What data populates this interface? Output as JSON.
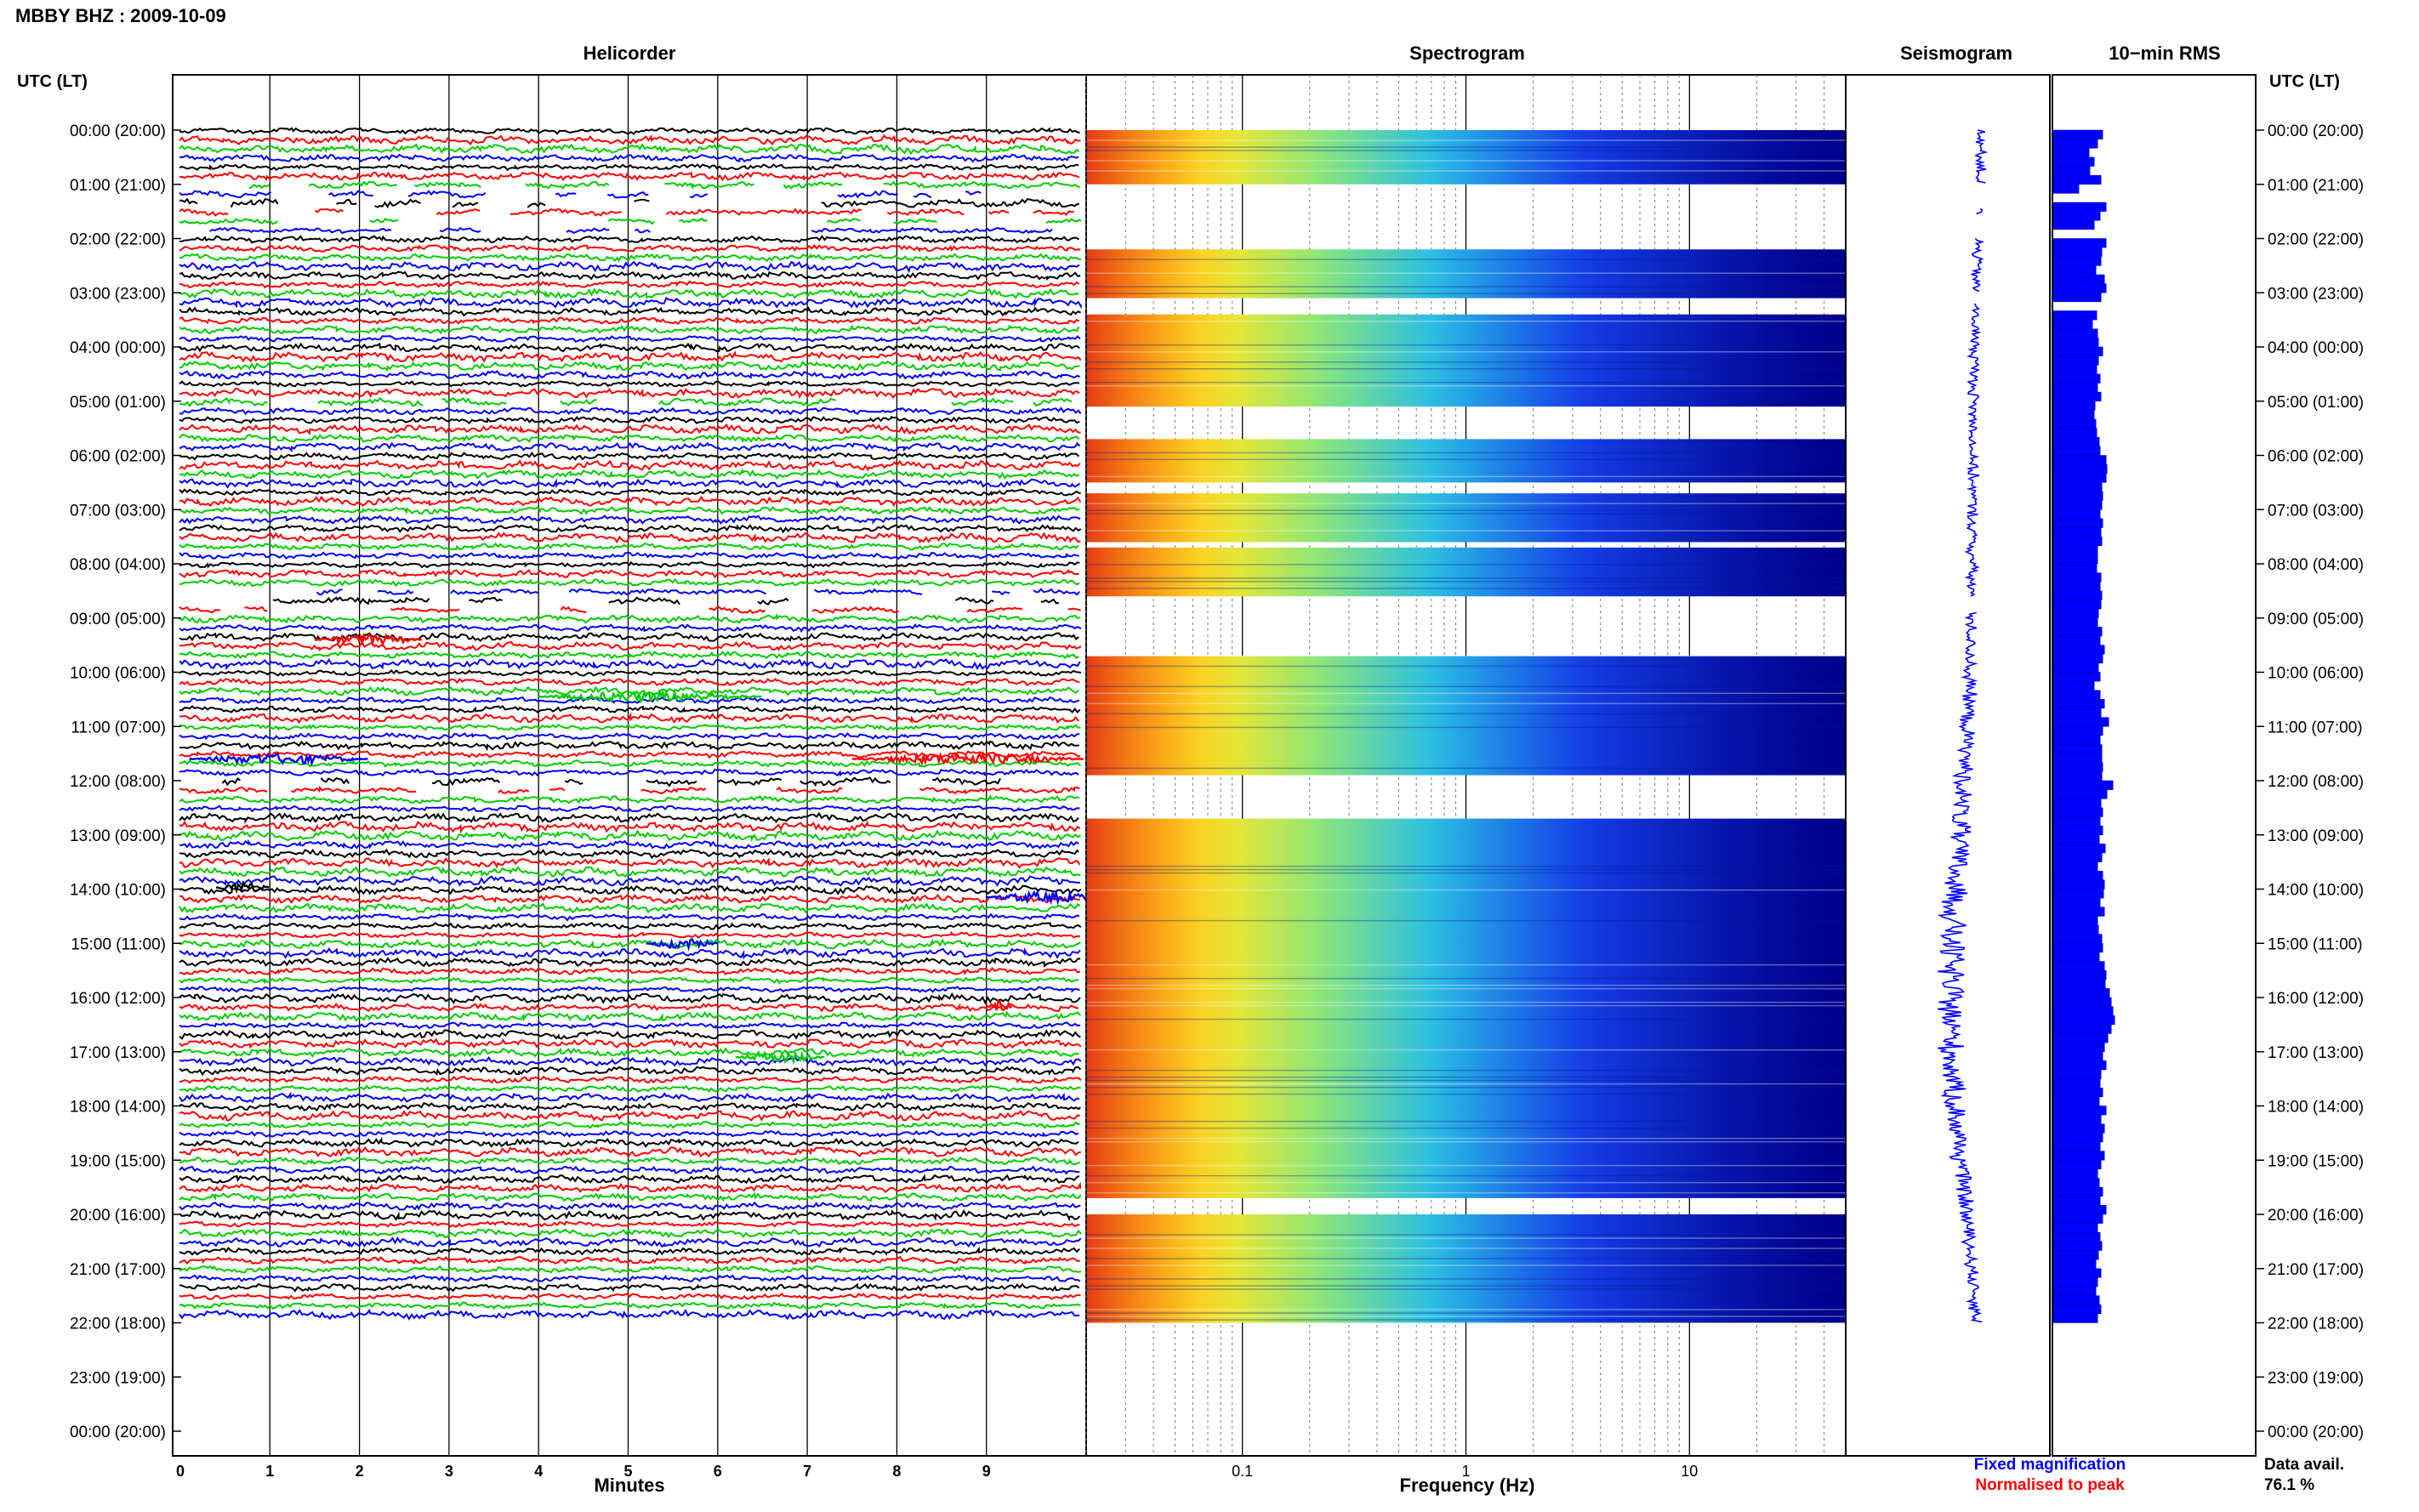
{
  "station_title": "MBBY BHZ : 2009-10-09",
  "time_axis_label": "UTC (LT)",
  "time_ticks": [
    "00:00 (20:00)",
    "01:00 (21:00)",
    "02:00 (22:00)",
    "03:00 (23:00)",
    "04:00 (00:00)",
    "05:00 (01:00)",
    "06:00 (02:00)",
    "07:00 (03:00)",
    "08:00 (04:00)",
    "09:00 (05:00)",
    "10:00 (06:00)",
    "11:00 (07:00)",
    "12:00 (08:00)",
    "13:00 (09:00)",
    "14:00 (10:00)",
    "15:00 (11:00)",
    "16:00 (12:00)",
    "17:00 (13:00)",
    "18:00 (14:00)",
    "19:00 (15:00)",
    "20:00 (16:00)",
    "21:00 (17:00)",
    "22:00 (18:00)",
    "23:00 (19:00)",
    "00:00 (20:00)"
  ],
  "colors": {
    "trace_cycle": [
      "#000000",
      "#ff0000",
      "#00cc00",
      "#0000ff"
    ],
    "seismogram": "#0000ff",
    "rms_bar": "#0000ff",
    "legend_fixed": "#0000ff",
    "legend_normalised": "#ff0000"
  },
  "chart_data": [
    {
      "type": "line",
      "title": "Helicorder",
      "xlabel": "Minutes",
      "x_ticks": [
        "0",
        "1",
        "2",
        "3",
        "4",
        "5",
        "6",
        "7",
        "8",
        "9"
      ],
      "xlim": [
        0,
        10
      ],
      "ylim_hours": [
        0,
        24
      ],
      "lines_per_hour": 6
    },
    {
      "type": "heatmap",
      "title": "Spectrogram",
      "xlabel": "Frequency (Hz)",
      "x_scale": "log",
      "x_ticks": [
        "0.1",
        "1",
        "10"
      ],
      "xlim": [
        0.02,
        50
      ],
      "data_blocks_hours": [
        [
          0,
          1.0
        ],
        [
          2.2,
          3.1
        ],
        [
          3.4,
          5.1
        ],
        [
          5.7,
          6.5
        ],
        [
          6.7,
          7.6
        ],
        [
          7.7,
          8.6
        ],
        [
          9.7,
          11.9
        ],
        [
          12.7,
          19.7
        ],
        [
          20.0,
          22.0
        ]
      ]
    },
    {
      "type": "line",
      "title": "Seismogram",
      "legend": [
        "Fixed magnification",
        "Normalised to peak"
      ]
    },
    {
      "type": "bar",
      "title": "10−min RMS",
      "orientation": "horizontal",
      "relative_values": [
        0.58,
        0.52,
        0.42,
        0.48,
        0.43,
        0.56,
        0.3,
        0.45,
        0.62,
        0.55,
        0.48,
        0.58,
        0.62,
        0.57,
        0.56,
        0.5,
        0.6,
        0.62,
        0.56,
        0.53,
        0.51,
        0.46,
        0.52,
        0.53,
        0.58,
        0.53,
        0.51,
        0.55,
        0.52,
        0.56,
        0.49,
        0.48,
        0.5,
        0.51,
        0.54,
        0.55,
        0.62,
        0.63,
        0.62,
        0.57,
        0.58,
        0.57,
        0.55,
        0.58,
        0.56,
        0.57,
        0.52,
        0.52,
        0.51,
        0.56,
        0.55,
        0.57,
        0.56,
        0.53,
        0.52,
        0.57,
        0.55,
        0.6,
        0.58,
        0.53,
        0.55,
        0.48,
        0.55,
        0.6,
        0.56,
        0.65,
        0.58,
        0.55,
        0.57,
        0.57,
        0.58,
        0.57,
        0.7,
        0.63,
        0.56,
        0.58,
        0.55,
        0.58,
        0.54,
        0.61,
        0.57,
        0.52,
        0.58,
        0.6,
        0.59,
        0.55,
        0.6,
        0.52,
        0.53,
        0.57,
        0.58,
        0.54,
        0.6,
        0.62,
        0.61,
        0.66,
        0.68,
        0.7,
        0.72,
        0.68,
        0.64,
        0.6,
        0.58,
        0.62,
        0.56,
        0.55,
        0.58,
        0.54,
        0.62,
        0.56,
        0.6,
        0.58,
        0.55,
        0.6,
        0.56,
        0.52,
        0.54,
        0.58,
        0.55,
        0.62,
        0.58,
        0.52,
        0.55,
        0.57,
        0.53,
        0.5,
        0.56,
        0.52,
        0.5,
        0.54,
        0.56,
        0.52
      ],
      "data_blocks_hours": [
        [
          0,
          1.1
        ],
        [
          1.3,
          1.7
        ],
        [
          2.0,
          3.1
        ],
        [
          3.2,
          8.7
        ],
        [
          8.8,
          22.0
        ]
      ]
    }
  ],
  "legend": {
    "fixed": "Fixed magnification",
    "normalised": "Normalised to peak"
  },
  "data_availability": {
    "label": "Data avail.",
    "value": "76.1 %"
  }
}
